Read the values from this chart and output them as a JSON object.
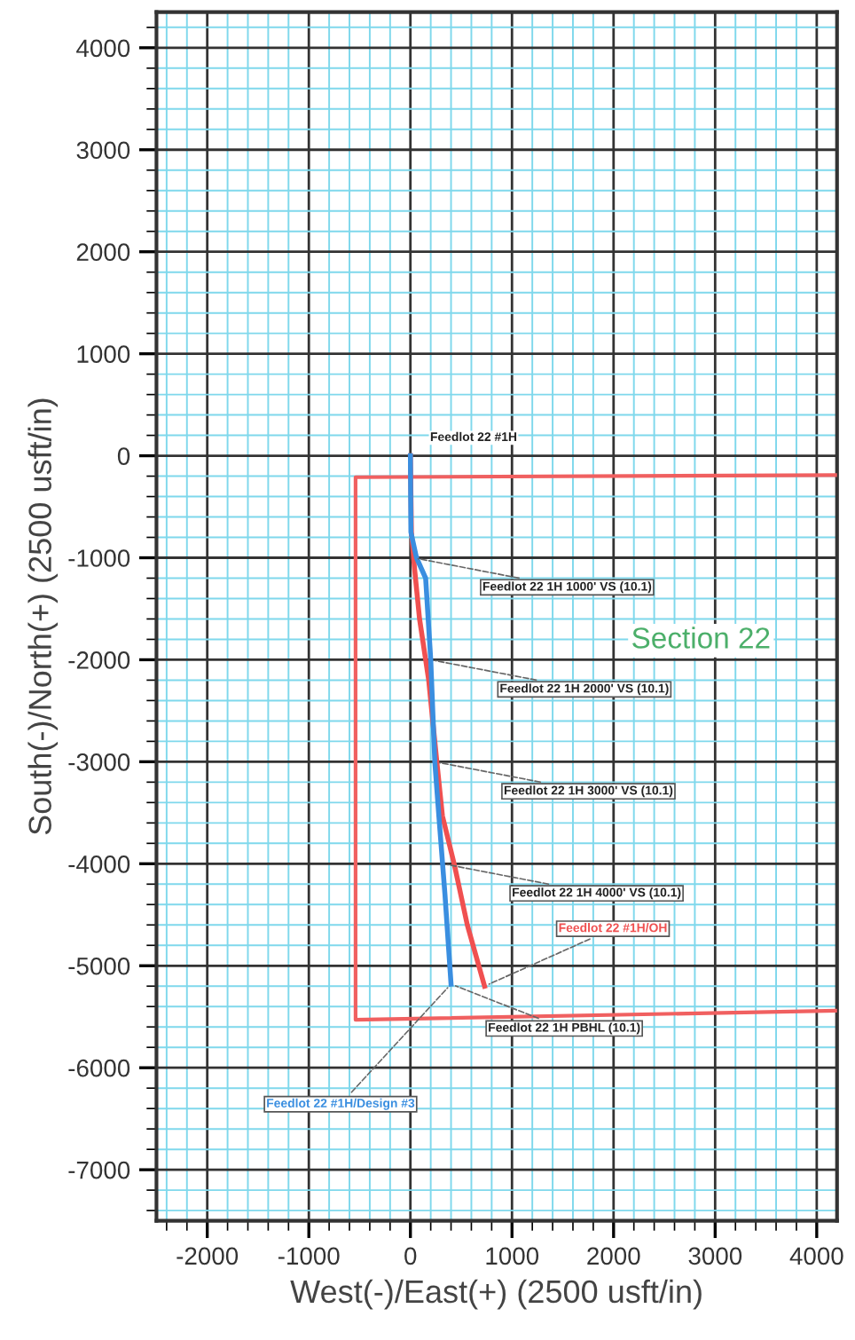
{
  "chart_data": {
    "type": "line",
    "xlabel": "West(-)/East(+) (2500 usft/in)",
    "ylabel": "South(-)/North(+) (2500 usft/in)",
    "xlim": [
      -2500,
      4200
    ],
    "ylim": [
      -7500,
      4350
    ],
    "xticks": [
      {
        "value": -2400,
        "label": null
      },
      {
        "value": -2200,
        "label": null
      },
      -2000,
      {
        "value": -1800,
        "label": null
      },
      {
        "value": -1600,
        "label": null
      },
      {
        "value": -1400,
        "label": null
      },
      {
        "value": -1200,
        "label": null
      },
      -1000,
      {
        "value": -800,
        "label": null
      },
      {
        "value": -600,
        "label": null
      },
      {
        "value": -400,
        "label": null
      },
      {
        "value": -200,
        "label": null
      },
      0,
      {
        "value": 200,
        "label": null
      },
      {
        "value": 400,
        "label": null
      },
      {
        "value": 600,
        "label": null
      },
      {
        "value": 800,
        "label": null
      },
      1000,
      {
        "value": 1200,
        "label": null
      },
      {
        "value": 1400,
        "label": null
      },
      {
        "value": 1600,
        "label": null
      },
      {
        "value": 1800,
        "label": null
      },
      2000,
      {
        "value": 2200,
        "label": null
      },
      {
        "value": 2400,
        "label": null
      },
      {
        "value": 2600,
        "label": null
      },
      {
        "value": 2800,
        "label": null
      },
      3000,
      {
        "value": 3200,
        "label": null
      },
      {
        "value": 3400,
        "label": null
      },
      {
        "value": 3600,
        "label": null
      },
      {
        "value": 3800,
        "label": null
      },
      4000
    ],
    "yticks": [
      {
        "value": -7400,
        "label": null
      },
      {
        "value": -7200,
        "label": null
      },
      -7000,
      {
        "value": -6800,
        "label": null
      },
      {
        "value": -6600,
        "label": null
      },
      {
        "value": -6400,
        "label": null
      },
      {
        "value": -6200,
        "label": null
      },
      -6000,
      {
        "value": -5800,
        "label": null
      },
      {
        "value": -5600,
        "label": null
      },
      {
        "value": -5400,
        "label": null
      },
      {
        "value": -5200,
        "label": null
      },
      -5000,
      {
        "value": -4800,
        "label": null
      },
      {
        "value": -4600,
        "label": null
      },
      {
        "value": -4400,
        "label": null
      },
      {
        "value": -4200,
        "label": null
      },
      -4000,
      {
        "value": -3800,
        "label": null
      },
      {
        "value": -3600,
        "label": null
      },
      {
        "value": -3400,
        "label": null
      },
      {
        "value": -3200,
        "label": null
      },
      -3000,
      {
        "value": -2800,
        "label": null
      },
      {
        "value": -2600,
        "label": null
      },
      {
        "value": -2400,
        "label": null
      },
      {
        "value": -2200,
        "label": null
      },
      -2000,
      {
        "value": -1800,
        "label": null
      },
      {
        "value": -1600,
        "label": null
      },
      {
        "value": -1400,
        "label": null
      },
      {
        "value": -1200,
        "label": null
      },
      -1000,
      {
        "value": -800,
        "label": null
      },
      {
        "value": -600,
        "label": null
      },
      {
        "value": -400,
        "label": null
      },
      {
        "value": -200,
        "label": null
      },
      0,
      {
        "value": 200,
        "label": null
      },
      {
        "value": 400,
        "label": null
      },
      {
        "value": 600,
        "label": null
      },
      {
        "value": 800,
        "label": null
      },
      1000,
      {
        "value": 1200,
        "label": null
      },
      {
        "value": 1400,
        "label": null
      },
      {
        "value": 1600,
        "label": null
      },
      {
        "value": 1800,
        "label": null
      },
      2000,
      {
        "value": 2200,
        "label": null
      },
      {
        "value": 2400,
        "label": null
      },
      {
        "value": 2600,
        "label": null
      },
      {
        "value": 2800,
        "label": null
      },
      3000,
      {
        "value": 3200,
        "label": null
      },
      {
        "value": 3400,
        "label": null
      },
      {
        "value": 3600,
        "label": null
      },
      {
        "value": 3800,
        "label": null
      },
      4000,
      {
        "value": 4200,
        "label": null
      }
    ],
    "grid": true,
    "legend": false,
    "marker": "none",
    "line_style": "solid",
    "series": [
      {
        "color": "#f06060",
        "x": [
          4200,
          -540,
          -540,
          4200
        ],
        "values": [
          -190,
          -210,
          -5530,
          -5440
        ]
      },
      {
        "name": "Feedlot 22 #1H/OH",
        "color": "#f05050",
        "x": [
          0,
          10,
          40,
          90,
          180,
          260,
          315,
          435,
          560,
          730
        ],
        "values": [
          0,
          -750,
          -1100,
          -1600,
          -2200,
          -3000,
          -3530,
          -4020,
          -4600,
          -5200
        ]
      },
      {
        "name": "Feedlot 22 #1H/Design #3",
        "color": "#3a8ee0",
        "x": [
          0,
          5,
          60,
          150,
          175,
          200,
          240,
          280,
          340,
          400
        ],
        "values": [
          0,
          -750,
          -1000,
          -1200,
          -1600,
          -2000,
          -3000,
          -3530,
          -4300,
          -5180
        ]
      }
    ],
    "annotations": [
      {
        "text": "Feedlot 22 #1H",
        "x": 0,
        "y": 0
      },
      {
        "text": "Feedlot 22 1H 1000' VS (10.1)",
        "x": 30,
        "y": -1000
      },
      {
        "text": "Feedlot 22 1H 2000' VS (10.1)",
        "x": 200,
        "y": -2000
      },
      {
        "text": "Feedlot 22 1H 3000' VS (10.1)",
        "x": 240,
        "y": -3000
      },
      {
        "text": "Feedlot 22 1H 4000' VS (10.1)",
        "x": 320,
        "y": -4000
      },
      {
        "text": "Feedlot 22 1H PBHL (10.1)",
        "x": 400,
        "y": -5180
      },
      "Section 22"
    ]
  }
}
